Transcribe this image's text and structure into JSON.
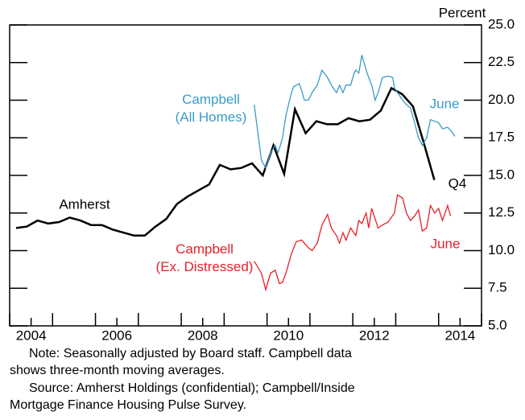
{
  "chart_data": {
    "type": "line",
    "y_axis_label": "Percent",
    "xlim": [
      2004,
      2015
    ],
    "ylim": [
      5,
      25
    ],
    "yticks": [
      {
        "value": 5,
        "label": "5.0"
      },
      {
        "value": 7.5,
        "label": "7.5"
      },
      {
        "value": 10,
        "label": "10.0"
      },
      {
        "value": 12.5,
        "label": "12.5"
      },
      {
        "value": 15,
        "label": "15.0"
      },
      {
        "value": 17.5,
        "label": "17.5"
      },
      {
        "value": 20,
        "label": "20.0"
      },
      {
        "value": 22.5,
        "label": "22.5"
      },
      {
        "value": 25,
        "label": "25.0"
      }
    ],
    "xticks": [
      2004,
      2005,
      2006,
      2007,
      2008,
      2009,
      2010,
      2011,
      2012,
      2013,
      2014,
      2015
    ],
    "xtick_labels": [
      {
        "value": 2004.5,
        "label": "2004"
      },
      {
        "value": 2006.5,
        "label": "2006"
      },
      {
        "value": 2008.5,
        "label": "2008"
      },
      {
        "value": 2010.5,
        "label": "2010"
      },
      {
        "value": 2012.5,
        "label": "2012"
      },
      {
        "value": 2014.5,
        "label": "2014"
      }
    ],
    "series": [
      {
        "name": "Amherst",
        "color": "#000000",
        "end_label": "Q4",
        "x": [
          2004.15,
          2004.4,
          2004.65,
          2004.9,
          2005.15,
          2005.4,
          2005.65,
          2005.9,
          2006.15,
          2006.4,
          2006.65,
          2006.9,
          2007.15,
          2007.4,
          2007.65,
          2007.9,
          2008.15,
          2008.4,
          2008.65,
          2008.9,
          2009.15,
          2009.4,
          2009.65,
          2009.9,
          2010.15,
          2010.4,
          2010.65,
          2010.9,
          2011.15,
          2011.4,
          2011.65,
          2011.9,
          2012.15,
          2012.4,
          2012.65,
          2012.9,
          2013.15,
          2013.4,
          2013.65,
          2013.9
        ],
        "values": [
          11.5,
          11.6,
          12.0,
          11.8,
          11.9,
          12.2,
          12.0,
          11.7,
          11.7,
          11.4,
          11.2,
          11.0,
          11.0,
          11.6,
          12.1,
          13.1,
          13.6,
          14.0,
          14.4,
          15.7,
          15.4,
          15.5,
          15.8,
          15.0,
          17.0,
          15.1,
          19.4,
          17.8,
          18.6,
          18.4,
          18.4,
          18.8,
          18.6,
          18.7,
          19.3,
          20.8,
          20.4,
          19.6,
          17.2,
          14.7
        ]
      },
      {
        "name": "Campbell (All Homes)",
        "color": "#3a9bc8",
        "end_label": "June",
        "x": [
          2009.7,
          2009.87,
          2009.97,
          2010.08,
          2010.19,
          2010.25,
          2010.29,
          2010.36,
          2010.44,
          2010.57,
          2010.62,
          2010.68,
          2010.75,
          2010.81,
          2010.87,
          2010.96,
          2011.0,
          2011.05,
          2011.17,
          2011.28,
          2011.41,
          2011.5,
          2011.62,
          2011.65,
          2011.69,
          2011.77,
          2011.84,
          2011.95,
          2012.03,
          2012.07,
          2012.14,
          2012.21,
          2012.31,
          2012.37,
          2012.44,
          2012.52,
          2012.59,
          2012.69,
          2012.82,
          2012.93,
          2012.97,
          2013.04,
          2013.16,
          2013.25,
          2013.34,
          2013.44,
          2013.53,
          2013.62,
          2013.72,
          2013.81,
          2013.91,
          2014.0,
          2014.09,
          2014.21,
          2014.28,
          2014.38
        ],
        "values": [
          19.7,
          16.0,
          15.5,
          16.5,
          17.0,
          16.5,
          16.8,
          17.5,
          19.0,
          20.5,
          20.9,
          21.0,
          21.1,
          20.6,
          20.0,
          20.0,
          20.2,
          20.5,
          21.0,
          22.0,
          21.5,
          21.0,
          20.5,
          20.7,
          21.0,
          20.5,
          21.0,
          21.0,
          21.8,
          22.0,
          21.8,
          23.0,
          22.0,
          21.5,
          21.0,
          20.0,
          20.5,
          21.5,
          21.6,
          21.5,
          20.8,
          20.5,
          20.0,
          19.7,
          19.5,
          18.5,
          17.5,
          17.0,
          17.5,
          18.7,
          18.6,
          18.5,
          18.1,
          18.2,
          18.0,
          17.6
        ]
      },
      {
        "name": "Campbell (Ex. Distressed)",
        "color": "#e8202a",
        "end_label": "June",
        "x": [
          2009.7,
          2009.87,
          2009.97,
          2010.08,
          2010.19,
          2010.29,
          2010.36,
          2010.44,
          2010.57,
          2010.68,
          2010.81,
          2010.96,
          2011.05,
          2011.17,
          2011.28,
          2011.41,
          2011.5,
          2011.62,
          2011.69,
          2011.77,
          2011.84,
          2011.95,
          2012.07,
          2012.14,
          2012.21,
          2012.31,
          2012.37,
          2012.44,
          2012.59,
          2012.69,
          2012.82,
          2012.97,
          2013.04,
          2013.16,
          2013.25,
          2013.34,
          2013.44,
          2013.53,
          2013.62,
          2013.72,
          2013.81,
          2013.91,
          2014.0,
          2014.09,
          2014.21,
          2014.28
        ],
        "values": [
          9.3,
          8.5,
          7.4,
          8.5,
          8.7,
          7.8,
          7.9,
          8.5,
          9.8,
          10.6,
          10.7,
          10.2,
          10.0,
          10.5,
          11.7,
          12.4,
          11.5,
          11.0,
          10.5,
          11.2,
          10.7,
          11.5,
          11.0,
          12.0,
          11.8,
          12.5,
          11.5,
          12.8,
          11.5,
          11.7,
          11.9,
          12.5,
          13.7,
          13.5,
          12.5,
          12.0,
          12.3,
          12.7,
          11.3,
          11.5,
          13.0,
          12.5,
          12.8,
          12.0,
          13.0,
          12.3
        ]
      }
    ],
    "notes": [
      "Note:  Seasonally adjusted by Board staff. Campbell data",
      "shows three-month moving averages.",
      "Source:  Amherst Holdings (confidential); Campbell/Inside",
      "Mortgage Finance Housing Pulse Survey."
    ]
  }
}
